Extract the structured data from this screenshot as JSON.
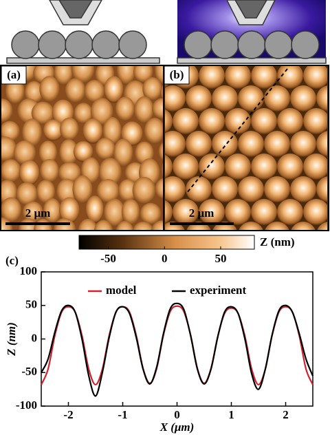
{
  "panels": {
    "a": "(a)",
    "b": "(b)",
    "c": "(c)",
    "scalebar_a": "2 μm",
    "scalebar_b": "2 μm"
  },
  "colorbar": {
    "label": "Z (nm)",
    "lim": [
      -76,
      80
    ],
    "ticks": [
      -50,
      0,
      50
    ]
  },
  "chart_data": {
    "type": "line",
    "xlabel": "X (μm)",
    "ylabel": "Z (nm)",
    "x": [
      -2.5,
      -2.375,
      -2.25,
      -2.125,
      -2,
      -1.875,
      -1.75,
      -1.625,
      -1.5,
      -1.375,
      -1.25,
      -1.125,
      -1,
      -0.875,
      -0.75,
      -0.625,
      -0.5,
      -0.375,
      -0.25,
      -0.125,
      0,
      0.125,
      0.25,
      0.375,
      0.5,
      0.625,
      0.75,
      0.875,
      1,
      1.125,
      1.25,
      1.375,
      1.5,
      1.625,
      1.75,
      1.875,
      2,
      2.125,
      2.25,
      2.375,
      2.5
    ],
    "series": [
      {
        "name": "model",
        "color": "#d0202e",
        "values": [
          -68,
          -45,
          5,
          40,
          48,
          40,
          5,
          -45,
          -68,
          -45,
          5,
          40,
          48,
          40,
          5,
          -44,
          -66,
          -44,
          6,
          41,
          49,
          41,
          6,
          -44,
          -66,
          -44,
          4,
          38,
          46,
          38,
          4,
          -45,
          -68,
          -45,
          5,
          40,
          48,
          40,
          5,
          -45,
          -68
        ]
      },
      {
        "name": "experiment",
        "color": "#000000",
        "values": [
          -50,
          -30,
          10,
          42,
          50,
          40,
          0,
          -55,
          -85,
          -50,
          2,
          40,
          48,
          38,
          2,
          -45,
          -67,
          -42,
          8,
          45,
          53,
          44,
          5,
          -45,
          -67,
          -45,
          3,
          40,
          48,
          38,
          0,
          -52,
          -75,
          -45,
          6,
          42,
          50,
          40,
          8,
          -30,
          -55
        ]
      }
    ],
    "xlim": [
      -2.5,
      2.5
    ],
    "xticks": [
      -2,
      -1,
      0,
      1,
      2
    ],
    "ylim": [
      -100,
      100
    ],
    "yticks": [
      -100,
      -50,
      0,
      50,
      100
    ]
  }
}
